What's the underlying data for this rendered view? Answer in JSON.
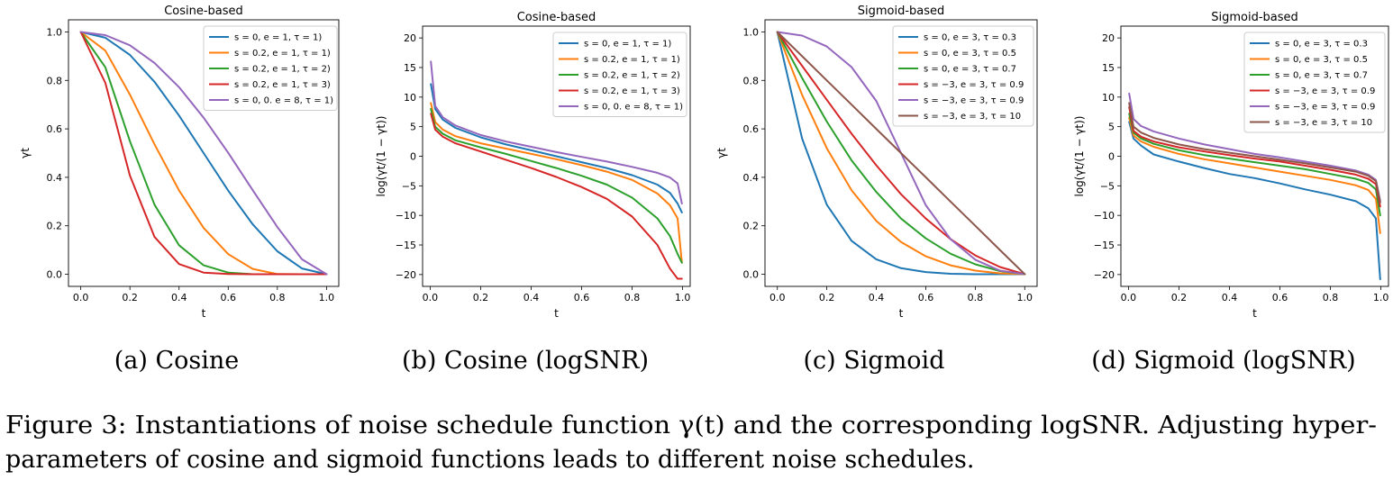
{
  "figure": {
    "subcaptions": [
      "(a) Cosine",
      "(b) Cosine (logSNR)",
      "(c) Sigmoid",
      "(d) Sigmoid (logSNR)"
    ],
    "caption_line1": "Figure 3: Instantiations of noise schedule function γ(t) and the corresponding logSNR. Adjusting hyper-",
    "caption_line2": "parameters of cosine and sigmoid functions leads to different noise schedules."
  },
  "chart_data": [
    {
      "type": "line",
      "title": "Cosine-based",
      "xlabel": "t",
      "ylabel": "γt",
      "xlim": [
        -0.05,
        1.05
      ],
      "ylim": [
        -0.05,
        1.05
      ],
      "xticks": [
        0.0,
        0.2,
        0.4,
        0.6,
        0.8,
        1.0
      ],
      "xtick_labels": [
        "0.0",
        "0.2",
        "0.4",
        "0.6",
        "0.8",
        "1.0"
      ],
      "yticks": [
        0.0,
        0.2,
        0.4,
        0.6,
        0.8,
        1.0
      ],
      "ytick_labels": [
        "0.0",
        "0.2",
        "0.4",
        "0.6",
        "0.8",
        "1.0"
      ],
      "legend_position": "top-right",
      "x": [
        0.0,
        0.1,
        0.2,
        0.3,
        0.4,
        0.5,
        0.6,
        0.7,
        0.8,
        0.9,
        1.0
      ],
      "series": [
        {
          "name": "s = 0, e = 1, τ = 1)",
          "color": "#1f77b4",
          "values": [
            1.0,
            0.976,
            0.905,
            0.794,
            0.655,
            0.5,
            0.345,
            0.206,
            0.095,
            0.024,
            0.0
          ]
        },
        {
          "name": "s = 0.2, e = 1, τ = 1)",
          "color": "#ff7f0e",
          "values": [
            1.0,
            0.923,
            0.741,
            0.536,
            0.346,
            0.191,
            0.083,
            0.022,
            0.001,
            0.0,
            0.0
          ]
        },
        {
          "name": "s = 0.2, e = 1, τ = 2)",
          "color": "#2ca02c",
          "values": [
            1.0,
            0.854,
            0.549,
            0.287,
            0.12,
            0.037,
            0.007,
            0.0,
            0.0,
            0.0,
            0.0
          ]
        },
        {
          "name": "s = 0.2, e = 1, τ = 3)",
          "color": "#d62728",
          "values": [
            1.0,
            0.79,
            0.407,
            0.154,
            0.042,
            0.007,
            0.001,
            0.0,
            0.0,
            0.0,
            0.0
          ]
        },
        {
          "name": "s = 0, 0. e = 8, τ = 1)",
          "color": "#9467bd",
          "values": [
            1.0,
            0.987,
            0.945,
            0.872,
            0.772,
            0.646,
            0.501,
            0.347,
            0.195,
            0.062,
            0.0
          ]
        }
      ]
    },
    {
      "type": "line",
      "title": "Cosine-based",
      "xlabel": "t",
      "ylabel": "log(γt/(1 − γt))",
      "xlim": [
        -0.03,
        1.03
      ],
      "ylim": [
        -22,
        22
      ],
      "xticks": [
        0.0,
        0.2,
        0.4,
        0.6,
        0.8,
        1.0
      ],
      "xtick_labels": [
        "0.0",
        "0.2",
        "0.4",
        "0.6",
        "0.8",
        "1.0"
      ],
      "yticks": [
        20,
        15,
        10,
        5,
        0,
        -5,
        -10,
        -15,
        -20
      ],
      "ytick_labels": [
        "20",
        "15",
        "10",
        "5",
        "0",
        "−5",
        "−10",
        "−15",
        "−20"
      ],
      "legend_position": "top-right",
      "x": [
        0.003,
        0.02,
        0.05,
        0.1,
        0.2,
        0.3,
        0.4,
        0.5,
        0.6,
        0.7,
        0.8,
        0.9,
        0.95,
        0.98,
        0.997
      ],
      "series": [
        {
          "name": "s = 0, e = 1, τ = 1)",
          "color": "#1f77b4",
          "values": [
            12.2,
            8.0,
            6.2,
            4.8,
            3.2,
            2.0,
            1.0,
            0.0,
            -1.0,
            -2.0,
            -3.2,
            -4.8,
            -6.2,
            -8.0,
            -9.5
          ]
        },
        {
          "name": "s = 0.2, e = 1, τ = 1)",
          "color": "#ff7f0e",
          "values": [
            9.0,
            5.8,
            4.5,
            3.4,
            2.2,
            1.3,
            0.4,
            -0.5,
            -1.5,
            -2.6,
            -4.0,
            -6.3,
            -8.3,
            -10.5,
            -18.0
          ]
        },
        {
          "name": "s = 0.2, e = 1, τ = 2)",
          "color": "#2ca02c",
          "values": [
            8.0,
            5.0,
            3.8,
            2.7,
            1.5,
            0.4,
            -0.8,
            -2.0,
            -3.3,
            -4.8,
            -7.0,
            -10.5,
            -13.5,
            -16.5,
            -18.0
          ]
        },
        {
          "name": "s = 0.2, e = 1, τ = 3)",
          "color": "#d62728",
          "values": [
            7.2,
            4.5,
            3.3,
            2.2,
            0.8,
            -0.6,
            -2.0,
            -3.5,
            -5.2,
            -7.2,
            -10.2,
            -15.0,
            -19.0,
            -20.7,
            -20.7
          ]
        },
        {
          "name": "s = 0, 0. e = 8, τ = 1)",
          "color": "#9467bd",
          "values": [
            16.0,
            8.5,
            6.6,
            5.2,
            3.6,
            2.5,
            1.6,
            0.7,
            -0.1,
            -0.9,
            -1.8,
            -2.8,
            -3.6,
            -4.6,
            -8.0
          ]
        }
      ]
    },
    {
      "type": "line",
      "title": "Sigmoid-based",
      "xlabel": "t",
      "ylabel": "γt",
      "xlim": [
        -0.05,
        1.05
      ],
      "ylim": [
        -0.05,
        1.05
      ],
      "xticks": [
        0.0,
        0.2,
        0.4,
        0.6,
        0.8,
        1.0
      ],
      "xtick_labels": [
        "0.0",
        "0.2",
        "0.4",
        "0.6",
        "0.8",
        "1.0"
      ],
      "yticks": [
        0.0,
        0.2,
        0.4,
        0.6,
        0.8,
        1.0
      ],
      "ytick_labels": [
        "0.0",
        "0.2",
        "0.4",
        "0.6",
        "0.8",
        "1.0"
      ],
      "legend_position": "top-right",
      "x": [
        0.0,
        0.1,
        0.2,
        0.3,
        0.4,
        0.5,
        0.6,
        0.7,
        0.8,
        0.9,
        1.0
      ],
      "series": [
        {
          "name": "s = 0, e = 3, τ = 0.3",
          "color": "#1f77b4",
          "values": [
            1.0,
            0.56,
            0.287,
            0.138,
            0.062,
            0.025,
            0.009,
            0.002,
            0.0,
            0.0,
            0.0
          ]
        },
        {
          "name": "s = 0, e = 3, τ = 0.5",
          "color": "#ff7f0e",
          "values": [
            1.0,
            0.74,
            0.52,
            0.347,
            0.22,
            0.133,
            0.074,
            0.037,
            0.015,
            0.004,
            0.0
          ]
        },
        {
          "name": "s = 0, e = 3, τ = 0.7",
          "color": "#2ca02c",
          "values": [
            1.0,
            0.81,
            0.63,
            0.47,
            0.34,
            0.23,
            0.148,
            0.085,
            0.041,
            0.013,
            0.0
          ]
        },
        {
          "name": "s = −3, e = 3, τ = 0.9",
          "color": "#d62728",
          "values": [
            1.0,
            0.86,
            0.72,
            0.58,
            0.45,
            0.33,
            0.23,
            0.145,
            0.078,
            0.03,
            0.0
          ]
        },
        {
          "name": "s = −3, e = 3, τ = 0.9",
          "color": "#9467bd",
          "values": [
            1.0,
            0.985,
            0.94,
            0.855,
            0.715,
            0.5,
            0.285,
            0.145,
            0.06,
            0.015,
            0.0
          ]
        },
        {
          "name": "s = −3, e = 3, τ = 10",
          "color": "#8c564b",
          "values": [
            1.0,
            0.9,
            0.8,
            0.7,
            0.6,
            0.5,
            0.4,
            0.3,
            0.2,
            0.1,
            0.0
          ]
        }
      ]
    },
    {
      "type": "line",
      "title": "Sigmoid-based",
      "xlabel": "t",
      "ylabel": "log(γt/(1 − γt))",
      "xlim": [
        -0.03,
        1.03
      ],
      "ylim": [
        -22,
        22
      ],
      "xticks": [
        0.0,
        0.2,
        0.4,
        0.6,
        0.8,
        1.0
      ],
      "xtick_labels": [
        "0.0",
        "0.2",
        "0.4",
        "0.6",
        "0.8",
        "1.0"
      ],
      "yticks": [
        20,
        15,
        10,
        5,
        0,
        -5,
        -10,
        -15,
        -20
      ],
      "ytick_labels": [
        "20",
        "15",
        "10",
        "5",
        "0",
        "−5",
        "−10",
        "−15",
        "−20"
      ],
      "legend_position": "top-right",
      "x": [
        0.003,
        0.02,
        0.05,
        0.1,
        0.2,
        0.3,
        0.4,
        0.5,
        0.6,
        0.7,
        0.8,
        0.9,
        0.95,
        0.98,
        0.997
      ],
      "series": [
        {
          "name": "s = 0, e = 3, τ = 0.3",
          "color": "#1f77b4",
          "values": [
            5.8,
            3.0,
            1.8,
            0.3,
            -0.9,
            -2.0,
            -3.0,
            -3.7,
            -4.6,
            -5.6,
            -6.5,
            -7.6,
            -8.8,
            -10.5,
            -20.8
          ]
        },
        {
          "name": "s = 0, e = 3, τ = 0.5",
          "color": "#ff7f0e",
          "values": [
            6.5,
            3.5,
            2.5,
            1.6,
            0.4,
            -0.5,
            -1.2,
            -1.9,
            -2.6,
            -3.3,
            -4.0,
            -4.9,
            -5.7,
            -7.2,
            -13.0
          ]
        },
        {
          "name": "s = 0, e = 3, τ = 0.7",
          "color": "#2ca02c",
          "values": [
            7.2,
            4.0,
            3.0,
            2.1,
            1.0,
            0.2,
            -0.4,
            -1.0,
            -1.6,
            -2.2,
            -3.0,
            -3.8,
            -4.5,
            -5.6,
            -10.0
          ]
        },
        {
          "name": "s = −3, e = 3, τ = 0.9",
          "color": "#d62728",
          "values": [
            8.3,
            4.3,
            3.3,
            2.5,
            1.5,
            0.8,
            0.2,
            -0.4,
            -0.9,
            -1.6,
            -2.3,
            -3.1,
            -3.8,
            -4.7,
            -8.5
          ]
        },
        {
          "name": "s = −3, e = 3, τ = 0.9",
          "color": "#9467bd",
          "values": [
            10.6,
            6.3,
            5.1,
            4.2,
            3.0,
            2.0,
            1.2,
            0.4,
            -0.2,
            -0.9,
            -1.6,
            -2.4,
            -3.1,
            -4.0,
            -7.5
          ]
        },
        {
          "name": "s = −3, e = 3, τ = 10",
          "color": "#8c564b",
          "values": [
            9.0,
            5.0,
            4.0,
            3.1,
            2.0,
            1.2,
            0.6,
            0.0,
            -0.6,
            -1.2,
            -1.9,
            -2.6,
            -3.3,
            -4.2,
            -7.8
          ]
        }
      ]
    }
  ]
}
